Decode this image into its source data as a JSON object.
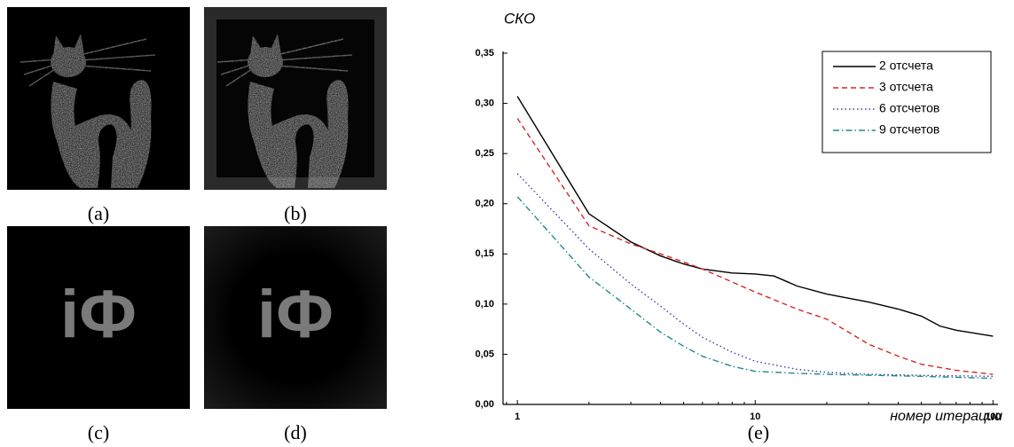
{
  "panels": {
    "a": {
      "label": "(a)"
    },
    "b": {
      "label": "(b)"
    },
    "c": {
      "label": "(c)",
      "text": "iФ"
    },
    "d": {
      "label": "(d)",
      "text": "iФ"
    },
    "e": {
      "label": "(e)"
    }
  },
  "chart_data": {
    "type": "line",
    "y_label": "СКО",
    "x_label": "номер итерации",
    "xscale": "log",
    "xlim": [
      0.87,
      105
    ],
    "xticks": [
      1,
      10,
      100
    ],
    "ylim": [
      0,
      0.35
    ],
    "yticks": [
      {
        "value": 0,
        "label": "0,00"
      },
      {
        "value": 0.05,
        "label": "0,05"
      },
      {
        "value": 0.1,
        "label": "0,10"
      },
      {
        "value": 0.15,
        "label": "0,15"
      },
      {
        "value": 0.2,
        "label": "0,20"
      },
      {
        "value": 0.25,
        "label": "0,25"
      },
      {
        "value": 0.3,
        "label": "0,30"
      },
      {
        "value": 0.35,
        "label": "0,35"
      }
    ],
    "legend": "top-right",
    "series": [
      {
        "name": "2 отсчета",
        "color": "#000000",
        "style": "solid",
        "x": [
          1,
          2,
          3,
          4,
          5,
          6,
          8,
          10,
          12,
          15,
          20,
          30,
          40,
          50,
          60,
          70,
          100
        ],
        "values": [
          0.307,
          0.19,
          0.162,
          0.148,
          0.14,
          0.135,
          0.131,
          0.13,
          0.128,
          0.118,
          0.11,
          0.102,
          0.095,
          0.088,
          0.078,
          0.074,
          0.068
        ]
      },
      {
        "name": "3 отсчета",
        "color": "#d62728",
        "style": "dashed",
        "x": [
          1,
          2,
          3,
          4,
          5,
          6,
          8,
          10,
          15,
          20,
          30,
          40,
          50,
          70,
          100
        ],
        "values": [
          0.285,
          0.178,
          0.16,
          0.15,
          0.142,
          0.135,
          0.122,
          0.112,
          0.095,
          0.085,
          0.06,
          0.048,
          0.04,
          0.034,
          0.03
        ]
      },
      {
        "name": "6 отсчетов",
        "color": "#3b3bb3",
        "style": "dotted",
        "x": [
          1,
          2,
          3,
          4,
          5,
          6,
          8,
          10,
          15,
          20,
          30,
          50,
          100
        ],
        "values": [
          0.23,
          0.155,
          0.12,
          0.098,
          0.08,
          0.067,
          0.052,
          0.043,
          0.035,
          0.032,
          0.03,
          0.029,
          0.028
        ]
      },
      {
        "name": "9 отсчетов",
        "color": "#1f8a8a",
        "style": "dashdot",
        "x": [
          1,
          2,
          3,
          4,
          5,
          6,
          8,
          10,
          15,
          20,
          50,
          100
        ],
        "values": [
          0.207,
          0.127,
          0.095,
          0.072,
          0.058,
          0.048,
          0.038,
          0.033,
          0.031,
          0.03,
          0.028,
          0.026
        ]
      }
    ]
  }
}
